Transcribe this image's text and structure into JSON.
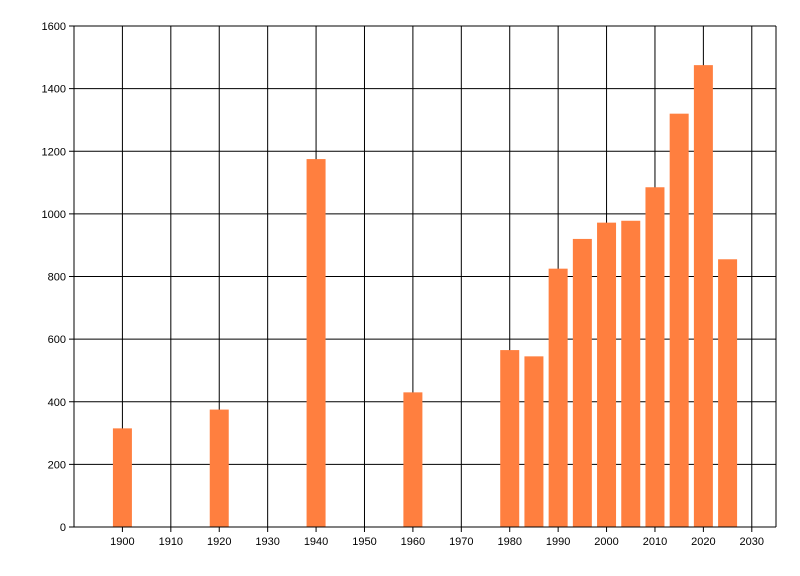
{
  "chart_data": {
    "type": "bar",
    "x": [
      1900,
      1920,
      1940,
      1960,
      1980,
      1985,
      1990,
      1995,
      2000,
      2005,
      2010,
      2015,
      2020,
      2025
    ],
    "values": [
      315,
      375,
      1175,
      430,
      565,
      545,
      825,
      920,
      972,
      978,
      1085,
      1320,
      1475,
      855
    ],
    "xticks": [
      "1900",
      "1910",
      "1920",
      "1930",
      "1940",
      "1950",
      "1960",
      "1970",
      "1980",
      "1990",
      "2000",
      "2010",
      "2020",
      "2030"
    ],
    "yticks": [
      "0",
      "200",
      "400",
      "600",
      "800",
      "1000",
      "1200",
      "1400",
      "1600"
    ],
    "xlim": [
      1890,
      2035
    ],
    "ylim": [
      0,
      1600
    ],
    "grid": true,
    "bar_color": "#FF7F3F",
    "title": "",
    "xlabel": "",
    "ylabel": ""
  }
}
